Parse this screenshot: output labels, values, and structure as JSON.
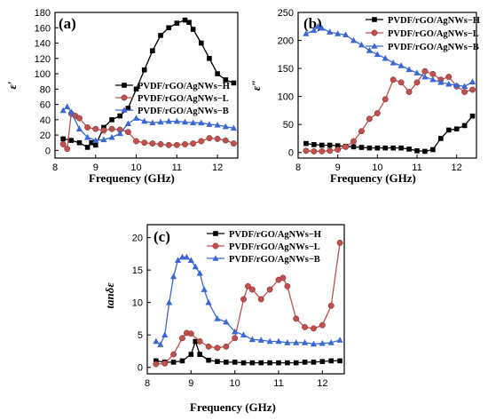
{
  "colors": {
    "H": "#000000",
    "L": "#c0504d",
    "B": "#3a66d6"
  },
  "chart_data": [
    {
      "type": "line",
      "panel": "(a)",
      "xlabel": "Frequency (GHz)",
      "ylabel": "ε′",
      "xlim": [
        8,
        12.5
      ],
      "ylim": [
        -10,
        180
      ],
      "xticks": [
        8,
        9,
        10,
        11,
        12
      ],
      "yticks": [
        0,
        20,
        40,
        60,
        80,
        100,
        120,
        140,
        160,
        180
      ],
      "legend_position": "middle-right",
      "series": [
        {
          "name": "PVDF/rGO/AgNWs−H",
          "key": "H",
          "marker": "square",
          "x": [
            8.2,
            8.4,
            8.6,
            8.8,
            8.9,
            9.0,
            9.2,
            9.4,
            9.6,
            9.8,
            10.0,
            10.2,
            10.4,
            10.6,
            10.8,
            11.0,
            11.2,
            11.3,
            11.4,
            11.6,
            11.8,
            12.0,
            12.2,
            12.4
          ],
          "y": [
            15,
            13,
            10,
            4,
            10,
            7,
            30,
            40,
            45,
            55,
            80,
            105,
            130,
            150,
            160,
            166,
            170,
            167,
            158,
            140,
            120,
            100,
            92,
            88
          ]
        },
        {
          "name": "PVDF/rGO/AgNWs−L",
          "key": "L",
          "marker": "circle",
          "x": [
            8.2,
            8.3,
            8.4,
            8.5,
            8.6,
            8.8,
            9.0,
            9.2,
            9.4,
            9.6,
            9.8,
            10.0,
            10.2,
            10.4,
            10.6,
            10.8,
            11.0,
            11.2,
            11.4,
            11.6,
            11.8,
            12.0,
            12.2,
            12.4
          ],
          "y": [
            8,
            2,
            48,
            45,
            42,
            30,
            28,
            26,
            28,
            27,
            24,
            12,
            10,
            9,
            8,
            7,
            7,
            8,
            9,
            12,
            16,
            15,
            13,
            9
          ]
        },
        {
          "name": "PVDF/rGO/AgNWs−B",
          "key": "B",
          "marker": "triangle",
          "x": [
            8.2,
            8.3,
            8.4,
            8.6,
            8.8,
            9.0,
            9.2,
            9.4,
            9.6,
            9.8,
            10.0,
            10.2,
            10.4,
            10.6,
            10.8,
            11.0,
            11.2,
            11.4,
            11.6,
            11.8,
            12.0,
            12.2,
            12.4
          ],
          "y": [
            52,
            57,
            50,
            28,
            17,
            13,
            14,
            17,
            22,
            35,
            42,
            38,
            36,
            37,
            38,
            38,
            37,
            36,
            36,
            34,
            33,
            31,
            29
          ]
        }
      ]
    },
    {
      "type": "line",
      "panel": "(b)",
      "xlabel": "Frequency (GHz)",
      "ylabel": "ε″",
      "xlim": [
        8,
        12.5
      ],
      "ylim": [
        -10,
        250
      ],
      "xticks": [
        8,
        9,
        10,
        11,
        12
      ],
      "yticks": [
        0,
        50,
        100,
        150,
        200,
        250
      ],
      "legend_position": "top-right",
      "series": [
        {
          "name": "PVDF/rGO/AgNWs−H",
          "key": "H",
          "marker": "square",
          "x": [
            8.2,
            8.4,
            8.6,
            8.8,
            9.0,
            9.2,
            9.4,
            9.6,
            9.8,
            10.0,
            10.2,
            10.4,
            10.6,
            10.8,
            11.0,
            11.2,
            11.4,
            11.6,
            11.8,
            12.0,
            12.2,
            12.4
          ],
          "y": [
            16,
            14,
            13,
            13,
            12,
            11,
            10,
            9,
            8,
            8,
            8,
            8,
            8,
            6,
            3,
            2,
            5,
            25,
            40,
            42,
            48,
            65
          ]
        },
        {
          "name": "PVDF/rGO/AgNWs−L",
          "key": "L",
          "marker": "circle",
          "x": [
            8.2,
            8.4,
            8.6,
            8.8,
            9.0,
            9.2,
            9.4,
            9.6,
            9.8,
            10.0,
            10.2,
            10.4,
            10.6,
            10.8,
            11.0,
            11.2,
            11.4,
            11.6,
            11.8,
            12.0,
            12.2,
            12.4
          ],
          "y": [
            3,
            2,
            2,
            3,
            5,
            10,
            20,
            38,
            60,
            70,
            95,
            130,
            125,
            108,
            125,
            145,
            140,
            130,
            135,
            118,
            108,
            112
          ]
        },
        {
          "name": "PVDF/rGO/AgNWs−B",
          "key": "B",
          "marker": "triangle",
          "x": [
            8.2,
            8.4,
            8.5,
            8.6,
            8.8,
            9.0,
            9.2,
            9.4,
            9.6,
            9.8,
            10.0,
            10.2,
            10.4,
            10.6,
            10.8,
            11.0,
            11.2,
            11.4,
            11.6,
            11.8,
            12.0,
            12.2,
            12.4
          ],
          "y": [
            212,
            218,
            225,
            222,
            215,
            212,
            210,
            200,
            192,
            182,
            175,
            168,
            160,
            155,
            148,
            142,
            135,
            130,
            125,
            122,
            120,
            118,
            126
          ]
        }
      ]
    },
    {
      "type": "line",
      "panel": "(c)",
      "xlabel": "Frequency (GHz)",
      "ylabel": "tanδε",
      "xlim": [
        8,
        12.5
      ],
      "ylim": [
        -1,
        22
      ],
      "xticks": [
        8,
        9,
        10,
        11,
        12
      ],
      "yticks": [
        0,
        5,
        10,
        15,
        20
      ],
      "legend_position": "top-right",
      "series": [
        {
          "name": "PVDF/rGO/AgNWs−H",
          "key": "H",
          "marker": "square",
          "x": [
            8.2,
            8.4,
            8.6,
            8.8,
            9.0,
            9.1,
            9.2,
            9.4,
            9.6,
            9.8,
            10.0,
            10.2,
            10.4,
            10.6,
            10.8,
            11.0,
            11.2,
            11.4,
            11.6,
            11.8,
            12.0,
            12.2,
            12.4
          ],
          "y": [
            1.0,
            0.8,
            0.8,
            1.0,
            2.0,
            4.0,
            2.0,
            1.1,
            0.9,
            0.8,
            0.8,
            0.7,
            0.7,
            0.7,
            0.7,
            0.7,
            0.7,
            0.7,
            0.8,
            0.8,
            0.9,
            1.0,
            1.0
          ]
        },
        {
          "name": "PVDF/rGO/AgNWs−L",
          "key": "L",
          "marker": "circle",
          "x": [
            8.2,
            8.4,
            8.6,
            8.8,
            8.9,
            9.0,
            9.2,
            9.4,
            9.6,
            9.8,
            10.0,
            10.2,
            10.3,
            10.4,
            10.6,
            10.8,
            11.0,
            11.1,
            11.2,
            11.4,
            11.6,
            11.8,
            12.0,
            12.2,
            12.4
          ],
          "y": [
            0.5,
            0.6,
            2.0,
            4.5,
            5.3,
            5.2,
            4.0,
            3.2,
            3.0,
            3.2,
            4.5,
            10.5,
            12.5,
            12.0,
            10.5,
            12.0,
            13.5,
            13.8,
            12.5,
            7.5,
            6.2,
            6.0,
            6.5,
            9.5,
            19.2
          ]
        },
        {
          "name": "PVDF/rGO/AgNWs−B",
          "key": "B",
          "marker": "triangle",
          "x": [
            8.2,
            8.3,
            8.4,
            8.5,
            8.6,
            8.7,
            8.8,
            8.9,
            9.0,
            9.1,
            9.2,
            9.3,
            9.4,
            9.6,
            9.8,
            10.0,
            10.2,
            10.4,
            10.6,
            10.8,
            11.0,
            11.2,
            11.4,
            11.6,
            11.8,
            12.0,
            12.2,
            12.4
          ],
          "y": [
            4.0,
            3.5,
            5.0,
            10.0,
            14.0,
            16.5,
            17.0,
            17.0,
            16.5,
            15.5,
            14.5,
            12.0,
            10.0,
            7.5,
            7.0,
            5.5,
            5.0,
            4.3,
            4.2,
            4.0,
            4.0,
            3.8,
            3.8,
            3.8,
            3.6,
            3.7,
            3.8,
            4.2
          ]
        }
      ]
    }
  ]
}
